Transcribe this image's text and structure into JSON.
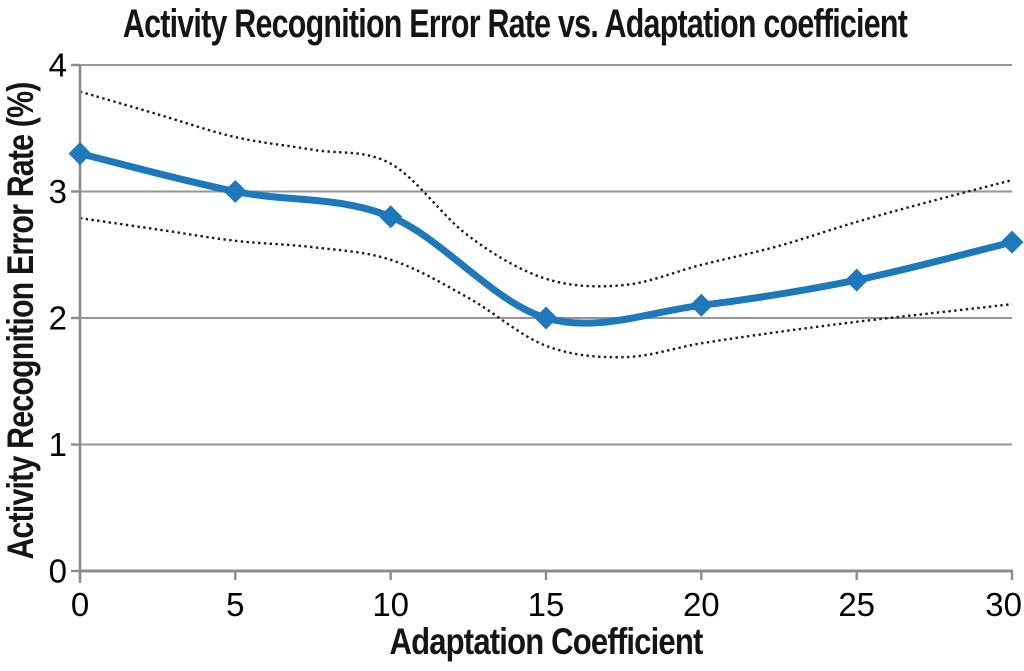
{
  "chart_data": {
    "type": "line",
    "title": "Activity Recognition Error Rate vs. Adaptation coefficient",
    "xlabel": "Adaptation Coefficient",
    "ylabel": "Activity Recognition Error Rate (%)",
    "xlim": [
      0,
      30
    ],
    "ylim": [
      0,
      4
    ],
    "x_ticks": [
      0,
      5,
      10,
      15,
      20,
      25,
      30
    ],
    "y_ticks": [
      0,
      1,
      2,
      3,
      4
    ],
    "grid": "horizontal-only",
    "legend": "none",
    "series": [
      {
        "name": "error-rate",
        "style": "solid-smooth",
        "marker": "diamond",
        "color": "#1C79BC",
        "line_width": 7,
        "x": [
          0,
          5,
          10,
          15,
          20,
          25,
          30
        ],
        "y": [
          3.3,
          3.0,
          2.8,
          2.0,
          2.1,
          2.3,
          2.6
        ]
      },
      {
        "name": "upper-confidence-bound",
        "style": "dotted-smooth",
        "marker": "none",
        "color": "#1A1A1A",
        "line_width": 2.4,
        "x": [
          0,
          2.5,
          5,
          7.5,
          10,
          12.5,
          15,
          17.5,
          20,
          22.5,
          25,
          27.5,
          30
        ],
        "y": [
          3.79,
          3.61,
          3.43,
          3.33,
          3.22,
          2.65,
          2.31,
          2.26,
          2.42,
          2.57,
          2.76,
          2.93,
          3.09
        ]
      },
      {
        "name": "lower-confidence-bound",
        "style": "dotted-smooth",
        "marker": "none",
        "color": "#1A1A1A",
        "line_width": 2.4,
        "x": [
          0,
          2.5,
          5,
          7.5,
          10,
          12.5,
          15,
          17.5,
          20,
          22.5,
          25,
          27.5,
          30
        ],
        "y": [
          2.79,
          2.7,
          2.61,
          2.56,
          2.46,
          2.16,
          1.78,
          1.69,
          1.8,
          1.89,
          1.97,
          2.04,
          2.11
        ]
      }
    ],
    "colors": {
      "background": "#FFFFFF",
      "grid_gray": "#969696",
      "axis_gray": "#8C8C8C",
      "tick_label": "#000000",
      "series_blue": "#1C79BC",
      "dotted_black": "#1A1A1A"
    }
  }
}
